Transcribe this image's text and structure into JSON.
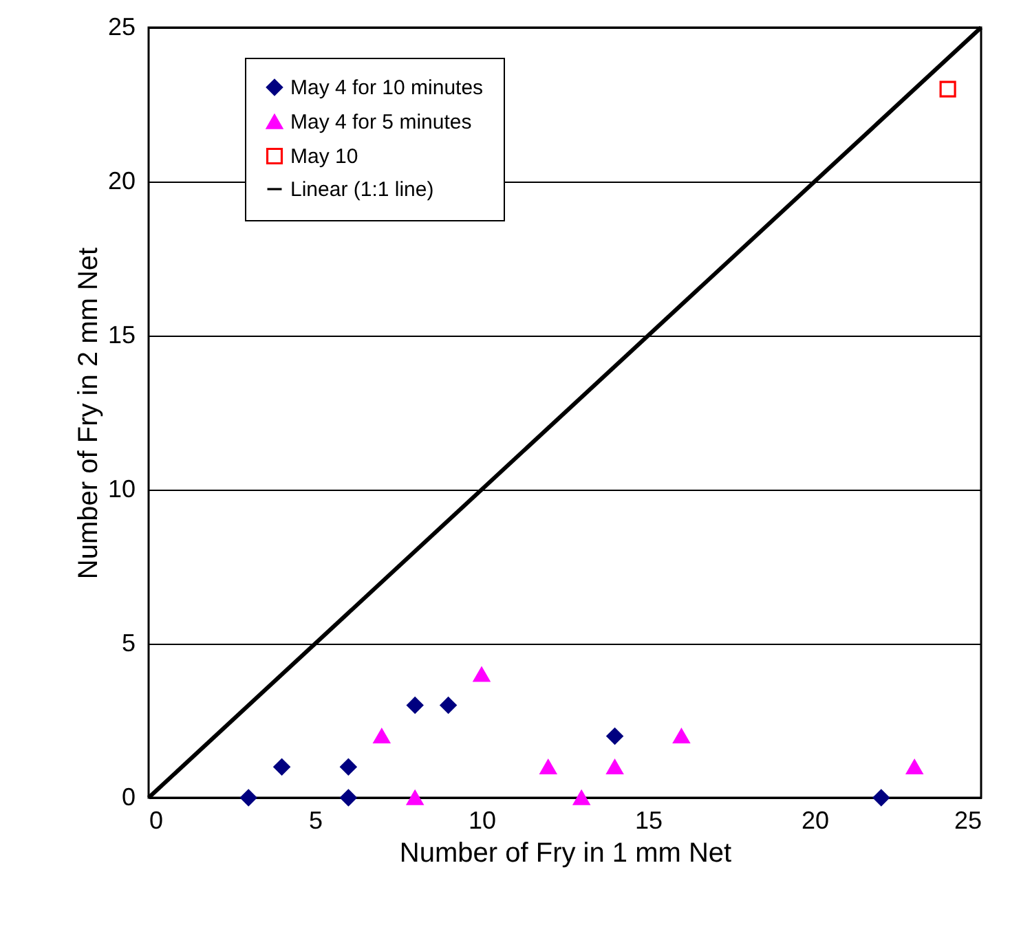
{
  "chart_data": {
    "type": "scatter",
    "xlabel": "Number of Fry in 1 mm Net",
    "ylabel": "Number of Fry in 2 mm Net",
    "xlim": [
      0,
      25
    ],
    "xticks": [
      0,
      5,
      10,
      15,
      20,
      25
    ],
    "ylim": [
      0,
      25
    ],
    "yticks": [
      0,
      5,
      10,
      15,
      20,
      25
    ],
    "grid": "y",
    "legend": "top left",
    "series": [
      {
        "name": "May 4 for 10 minutes",
        "marker": "diamond",
        "color": "#000080",
        "x": [
          3,
          4,
          6,
          6,
          8,
          9,
          14,
          22
        ],
        "values": [
          0,
          1,
          1,
          0,
          3,
          3,
          2,
          0
        ]
      },
      {
        "name": "May 4 for 5 minutes",
        "marker": "triangle",
        "color": "#ff00ff",
        "x": [
          7,
          8,
          10,
          12,
          13,
          14,
          16,
          23
        ],
        "values": [
          2,
          0,
          4,
          1,
          0,
          1,
          2,
          1
        ]
      },
      {
        "name": "May 10",
        "marker": "square",
        "color": "#ff0000",
        "x": [
          24
        ],
        "values": [
          23
        ]
      },
      {
        "name": "Linear (1:1 line)",
        "type": "line",
        "marker": "none",
        "color": "#000000",
        "x": [
          0,
          25
        ],
        "values": [
          0,
          25
        ]
      }
    ]
  }
}
